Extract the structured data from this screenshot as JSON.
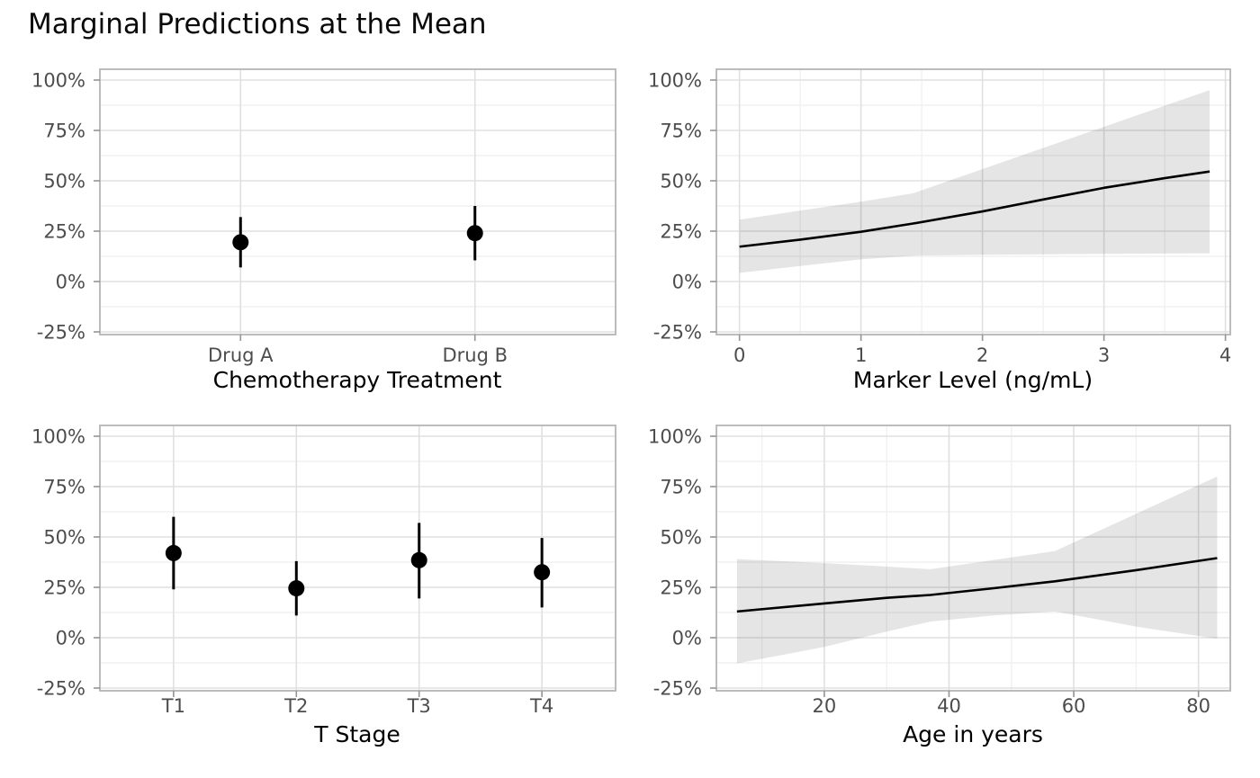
{
  "title": "Marginal Predictions at the Mean",
  "y_axis": {
    "tick_values": [
      100,
      75,
      50,
      25,
      0,
      -25
    ],
    "tick_labels": [
      "100%",
      "75%",
      "50%",
      "25%",
      "0%",
      "-25%"
    ],
    "minor_values": [
      87.5,
      62.5,
      37.5,
      12.5,
      -12.5
    ],
    "unit": "percent"
  },
  "colors": {
    "line": "#000000",
    "point": "#000000",
    "ribbon": "rgba(0,0,0,0.10)",
    "grid_major": "#e0e0e0",
    "grid_minor": "#f1f1f1",
    "panel_border": "#b5b5b5",
    "tick_mark": "#949494",
    "tick_label": "#4d4d4d",
    "title_text": "#0a0a0a",
    "background": "#ffffff"
  },
  "chart_data": [
    {
      "type": "pointrange",
      "position": "top-left",
      "xlabel": "Chemotherapy Treatment",
      "categories": [
        "Drug A",
        "Drug B"
      ],
      "estimates_pct": [
        19.5,
        24
      ],
      "ci_low_pct": [
        7,
        10.5
      ],
      "ci_high_pct": [
        32,
        37.5
      ],
      "ylim_pct": [
        -25,
        100
      ]
    },
    {
      "type": "line",
      "position": "top-right",
      "xlabel": "Marker Level (ng/mL)",
      "x_ticks": [
        0,
        1,
        2,
        3,
        4
      ],
      "x_minor": [
        0.5,
        1.5,
        2.5,
        3.5
      ],
      "xlim": [
        -0.19,
        4.04
      ],
      "x": [
        0,
        0.5,
        1,
        1.43,
        2,
        2.5,
        3,
        3.5,
        3.87
      ],
      "y_pct": [
        17.3,
        20.8,
        24.7,
        28.8,
        34.8,
        40.7,
        46.5,
        51.3,
        54.6
      ],
      "ci_high_pct": [
        30.7,
        35.2,
        39.6,
        43.8,
        55.8,
        66.3,
        76.8,
        87.3,
        95
      ],
      "ci_low_pct": [
        4.3,
        7.7,
        11,
        12.8,
        13.3,
        13.5,
        13.7,
        13.9,
        14
      ],
      "ylim_pct": [
        -25,
        100
      ]
    },
    {
      "type": "pointrange",
      "position": "bottom-left",
      "xlabel": "T Stage",
      "categories": [
        "T1",
        "T2",
        "T3",
        "T4"
      ],
      "estimates_pct": [
        42,
        24.5,
        38.5,
        32.5
      ],
      "ci_low_pct": [
        24,
        11,
        19.5,
        15
      ],
      "ci_high_pct": [
        60,
        38,
        57,
        49.5
      ],
      "ylim_pct": [
        -25,
        100
      ]
    },
    {
      "type": "line",
      "position": "bottom-right",
      "xlabel": "Age in years",
      "x_ticks": [
        20,
        40,
        60,
        80
      ],
      "x_minor": [
        10,
        30,
        50,
        70
      ],
      "xlim": [
        2.7,
        85.1
      ],
      "x": [
        6,
        20,
        30,
        37,
        47,
        57,
        70,
        83
      ],
      "y_pct": [
        13,
        17,
        19.8,
        21.2,
        24.5,
        28,
        33.5,
        39.5
      ],
      "ci_high_pct": [
        39,
        37,
        35.3,
        34,
        38.5,
        43,
        61.5,
        80
      ],
      "ci_low_pct": [
        -12.8,
        -4.6,
        3,
        8,
        11,
        13,
        5.5,
        -0.5
      ],
      "ylim_pct": [
        -25,
        100
      ]
    }
  ]
}
